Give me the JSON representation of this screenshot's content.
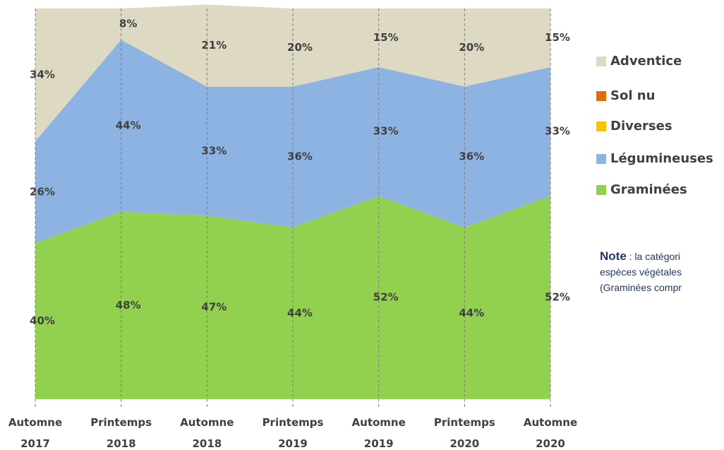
{
  "chart_data": {
    "type": "stacked_area",
    "categories": [
      "Automne 2017",
      "Printemps 2018",
      "Automne 2018",
      "Printemps 2019",
      "Automne 2019",
      "Printemps 2020",
      "Automne 2020"
    ],
    "ylim": [
      0,
      100
    ],
    "series": [
      {
        "name": "Graminées",
        "color": "#92d050",
        "values": [
          40,
          48,
          47,
          44,
          52,
          44,
          52
        ],
        "value_labels": [
          "40%",
          "48%",
          "47%",
          "44%",
          "52%",
          "44%",
          "52%"
        ]
      },
      {
        "name": "Légumineuses",
        "color": "#8db3e2",
        "values": [
          26,
          44,
          33,
          36,
          33,
          36,
          33
        ],
        "value_labels": [
          "26%",
          "44%",
          "33%",
          "36%",
          "33%",
          "36%",
          "33%"
        ]
      },
      {
        "name": "Diverses",
        "color": "#ffc000",
        "values": [
          0,
          0,
          0,
          0,
          0,
          0,
          0
        ]
      },
      {
        "name": "Sol nu",
        "color": "#e36c09",
        "values": [
          0,
          0,
          0,
          0,
          0,
          0,
          0
        ]
      },
      {
        "name": "Adventice",
        "color": "#ddd9c3",
        "values": [
          34,
          8,
          21,
          20,
          15,
          20,
          15
        ],
        "value_labels": [
          "34%",
          "8%",
          "21%",
          "20%",
          "15%",
          "20%",
          "15%"
        ]
      }
    ],
    "note": {
      "label": "Note",
      "lines": [
        " : la catégori",
        "espèces végétales",
        "(Graminées compr"
      ]
    }
  }
}
